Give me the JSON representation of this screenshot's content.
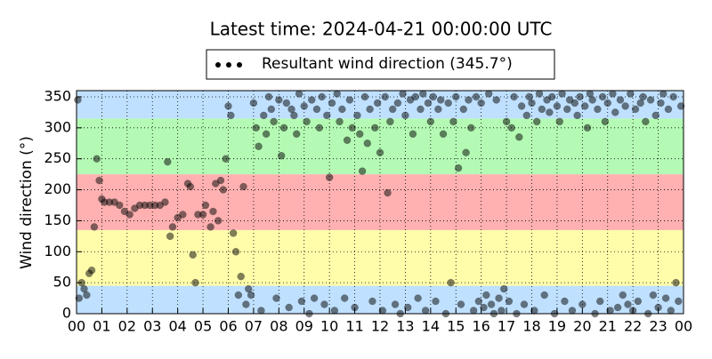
{
  "chart_data": {
    "type": "scatter",
    "title": "Latest time: 2024-04-21 00:00:00 UTC",
    "y_label": "Wind direction (°)",
    "legend": "top-center",
    "grid": true,
    "bands": [
      {
        "from": 0,
        "to": 45,
        "color": "#bfe0ff"
      },
      {
        "from": 45,
        "to": 135,
        "color": "#fffcaa"
      },
      {
        "from": 135,
        "to": 225,
        "color": "#ffb0b0"
      },
      {
        "from": 225,
        "to": 315,
        "color": "#b4fab4"
      },
      {
        "from": 315,
        "to": 360,
        "color": "#bfe0ff"
      }
    ],
    "xlim": [
      0,
      24
    ],
    "ylim": [
      0,
      360
    ],
    "xticks": [
      {
        "value": 0,
        "label": "00"
      },
      {
        "value": 1,
        "label": "01"
      },
      {
        "value": 2,
        "label": "02"
      },
      {
        "value": 3,
        "label": "03"
      },
      {
        "value": 4,
        "label": "04"
      },
      {
        "value": 5,
        "label": "05"
      },
      {
        "value": 6,
        "label": "06"
      },
      {
        "value": 7,
        "label": "07"
      },
      {
        "value": 8,
        "label": "08"
      },
      {
        "value": 9,
        "label": "09"
      },
      {
        "value": 10,
        "label": "10"
      },
      {
        "value": 11,
        "label": "11"
      },
      {
        "value": 12,
        "label": "12"
      },
      {
        "value": 13,
        "label": "13"
      },
      {
        "value": 14,
        "label": "14"
      },
      {
        "value": 15,
        "label": "15"
      },
      {
        "value": 16,
        "label": "16"
      },
      {
        "value": 17,
        "label": "17"
      },
      {
        "value": 18,
        "label": "18"
      },
      {
        "value": 19,
        "label": "19"
      },
      {
        "value": 20,
        "label": "20"
      },
      {
        "value": 21,
        "label": "21"
      },
      {
        "value": 22,
        "label": "22"
      },
      {
        "value": 23,
        "label": "23"
      },
      {
        "value": 24,
        "label": "00"
      }
    ],
    "yticks": [
      0,
      50,
      100,
      150,
      200,
      250,
      300,
      350
    ],
    "series": [
      {
        "name": "Resultant wind direction (345.7°)",
        "color": "#000000",
        "x": [
          0.05,
          0.1,
          0.2,
          0.3,
          0.4,
          0.5,
          0.6,
          0.7,
          0.8,
          0.9,
          1.0,
          1.1,
          1.3,
          1.5,
          1.7,
          1.9,
          2.1,
          2.3,
          2.5,
          2.7,
          2.9,
          3.1,
          3.3,
          3.5,
          3.6,
          3.7,
          3.8,
          4.0,
          4.2,
          4.4,
          4.5,
          4.6,
          4.7,
          4.8,
          5.0,
          5.1,
          5.3,
          5.4,
          5.5,
          5.6,
          5.7,
          5.8,
          5.9,
          6.0,
          6.1,
          6.2,
          6.3,
          6.4,
          6.5,
          6.6,
          6.7,
          6.8,
          6.9,
          7.0,
          7.1,
          7.2,
          7.3,
          7.4,
          7.5,
          7.6,
          7.7,
          7.8,
          7.9,
          8.0,
          8.1,
          8.2,
          8.3,
          8.4,
          8.5,
          8.6,
          8.7,
          8.8,
          8.9,
          9.0,
          9.1,
          9.2,
          9.3,
          9.4,
          9.5,
          9.6,
          9.7,
          9.8,
          9.9,
          10.0,
          10.1,
          10.2,
          10.3,
          10.4,
          10.5,
          10.6,
          10.7,
          10.8,
          10.9,
          11.0,
          11.1,
          11.2,
          11.3,
          11.4,
          11.5,
          11.6,
          11.7,
          11.8,
          11.9,
          12.0,
          12.1,
          12.2,
          12.3,
          12.4,
          12.5,
          12.6,
          12.7,
          12.8,
          12.9,
          13.0,
          13.1,
          13.2,
          13.3,
          13.4,
          13.5,
          13.6,
          13.7,
          13.8,
          13.9,
          14.0,
          14.1,
          14.2,
          14.3,
          14.4,
          14.5,
          14.6,
          14.7,
          14.8,
          14.9,
          15.0,
          15.1,
          15.2,
          15.3,
          15.4,
          15.5,
          15.6,
          15.7,
          15.8,
          15.9,
          16.0,
          16.1,
          16.2,
          16.3,
          16.4,
          16.5,
          16.6,
          16.7,
          16.8,
          16.9,
          17.0,
          17.1,
          17.2,
          17.3,
          17.4,
          17.5,
          17.6,
          17.7,
          17.8,
          17.9,
          18.0,
          18.1,
          18.2,
          18.3,
          18.4,
          18.5,
          18.6,
          18.7,
          18.8,
          18.9,
          19.0,
          19.1,
          19.2,
          19.3,
          19.4,
          19.5,
          19.6,
          19.7,
          19.8,
          19.9,
          20.0,
          20.1,
          20.2,
          20.3,
          20.4,
          20.5,
          20.6,
          20.7,
          20.8,
          20.9,
          21.0,
          21.1,
          21.2,
          21.3,
          21.4,
          21.5,
          21.6,
          21.7,
          21.8,
          21.9,
          22.0,
          22.1,
          22.2,
          22.3,
          22.4,
          22.5,
          22.6,
          22.7,
          22.8,
          22.9,
          23.0,
          23.1,
          23.2,
          23.3,
          23.4,
          23.5,
          23.6,
          23.7,
          23.8,
          23.9
        ],
        "values": [
          345,
          25,
          50,
          40,
          30,
          65,
          70,
          140,
          250,
          215,
          185,
          180,
          180,
          180,
          175,
          165,
          160,
          170,
          175,
          175,
          175,
          175,
          175,
          180,
          245,
          125,
          140,
          155,
          160,
          210,
          205,
          95,
          50,
          160,
          160,
          175,
          140,
          165,
          210,
          150,
          215,
          200,
          250,
          335,
          320,
          130,
          100,
          30,
          60,
          205,
          15,
          40,
          30,
          340,
          300,
          270,
          5,
          320,
          290,
          350,
          330,
          310,
          25,
          345,
          255,
          300,
          340,
          10,
          330,
          320,
          290,
          355,
          20,
          335,
          310,
          0,
          345,
          25,
          330,
          300,
          350,
          15,
          320,
          220,
          340,
          5,
          355,
          310,
          330,
          25,
          280,
          345,
          300,
          10,
          320,
          290,
          230,
          350,
          275,
          330,
          20,
          300,
          340,
          260,
          5,
          350,
          195,
          310,
          330,
          15,
          340,
          0,
          355,
          320,
          10,
          345,
          290,
          350,
          25,
          330,
          355,
          5,
          340,
          310,
          350,
          20,
          330,
          345,
          290,
          0,
          340,
          50,
          310,
          350,
          235,
          15,
          330,
          260,
          345,
          300,
          5,
          350,
          20,
          340,
          10,
          30,
          355,
          15,
          0,
          345,
          25,
          5,
          40,
          310,
          20,
          300,
          350,
          0,
          285,
          335,
          15,
          320,
          350,
          340,
          5,
          310,
          355,
          330,
          30,
          345,
          325,
          350,
          0,
          335,
          310,
          355,
          20,
          330,
          345,
          5,
          340,
          320,
          350,
          15,
          335,
          300,
          355,
          345,
          0,
          330,
          20,
          350,
          310,
          340,
          5,
          355,
          325,
          10,
          345,
          30,
          335,
          15,
          355,
          5,
          330,
          20,
          340,
          350,
          310,
          0,
          345,
          30,
          320,
          10,
          340,
          355,
          25,
          330,
          5,
          350,
          50,
          20,
          335
        ]
      }
    ]
  }
}
